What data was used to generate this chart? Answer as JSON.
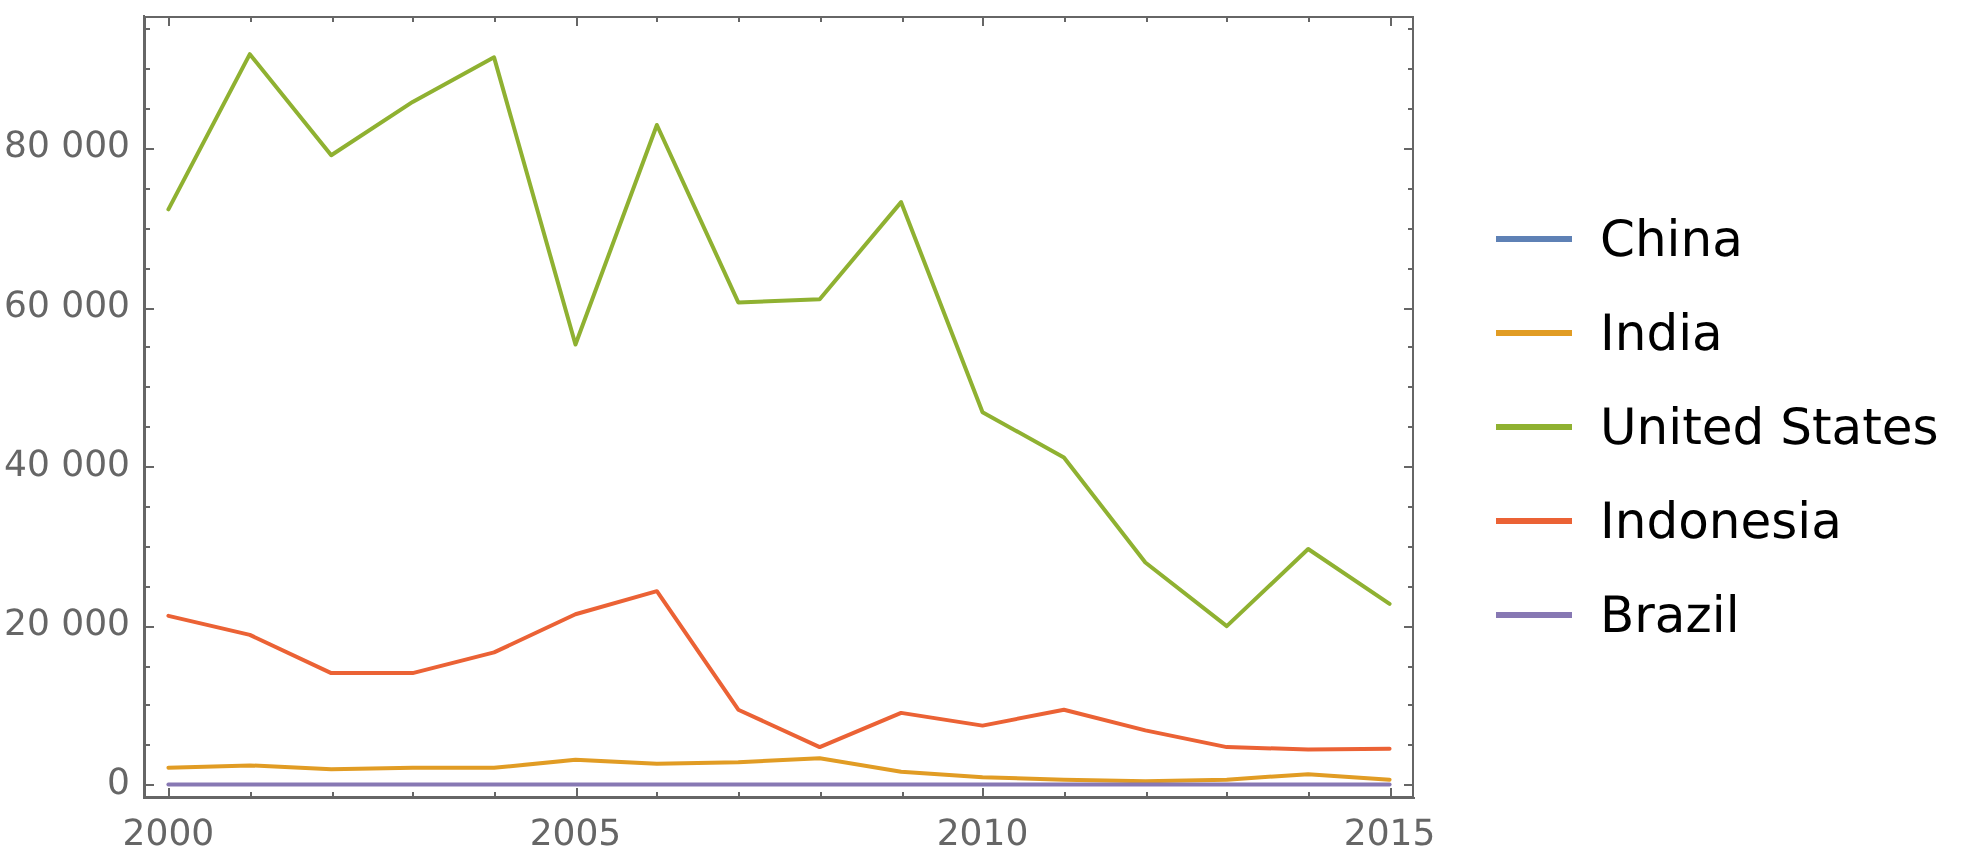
{
  "chart_data": {
    "type": "line",
    "x": [
      2000,
      2001,
      2002,
      2003,
      2004,
      2005,
      2006,
      2007,
      2008,
      2009,
      2010,
      2011,
      2012,
      2013,
      2014,
      2015
    ],
    "series": [
      {
        "name": "China",
        "color": "#5e81b5",
        "values": [
          null,
          null,
          null,
          null,
          null,
          null,
          null,
          null,
          null,
          null,
          null,
          null,
          null,
          null,
          null,
          null
        ]
      },
      {
        "name": "India",
        "color": "#e19c24",
        "values": [
          2100,
          2400,
          1900,
          2100,
          2100,
          3100,
          2600,
          2800,
          3300,
          1600,
          900,
          600,
          400,
          600,
          1300,
          600
        ]
      },
      {
        "name": "United States",
        "color": "#8fb131",
        "values": [
          72300,
          91800,
          79100,
          85800,
          91400,
          55300,
          82900,
          60600,
          61000,
          73200,
          46800,
          41100,
          27900,
          19900,
          29600,
          22700
        ]
      },
      {
        "name": "Indonesia",
        "color": "#eb6235",
        "values": [
          21200,
          18800,
          14000,
          14000,
          16600,
          21400,
          24300,
          9400,
          4700,
          9000,
          7400,
          9400,
          6800,
          4700,
          4400,
          4500
        ]
      },
      {
        "name": "Brazil",
        "color": "#8778b3",
        "values": [
          0,
          0,
          0,
          0,
          0,
          0,
          0,
          0,
          0,
          0,
          0,
          0,
          0,
          0,
          0,
          0
        ]
      }
    ],
    "xlim": [
      1999.7,
      2015.3
    ],
    "ylim": [
      -1700,
      96600
    ],
    "xticks": [
      2000,
      {
        "value": 2001,
        "label": null
      },
      {
        "value": 2002,
        "label": null
      },
      {
        "value": 2003,
        "label": null
      },
      {
        "value": 2004,
        "label": null
      },
      2005,
      {
        "value": 2006,
        "label": null
      },
      {
        "value": 2007,
        "label": null
      },
      {
        "value": 2008,
        "label": null
      },
      {
        "value": 2009,
        "label": null
      },
      2010,
      {
        "value": 2011,
        "label": null
      },
      {
        "value": 2012,
        "label": null
      },
      {
        "value": 2013,
        "label": null
      },
      {
        "value": 2014,
        "label": null
      },
      2015
    ],
    "yticks": [
      0,
      {
        "value": 5000,
        "label": null
      },
      {
        "value": 10000,
        "label": null
      },
      {
        "value": 15000,
        "label": null
      },
      {
        "value": 20000,
        "label": "20 000"
      },
      {
        "value": 25000,
        "label": null
      },
      {
        "value": 30000,
        "label": null
      },
      {
        "value": 35000,
        "label": null
      },
      {
        "value": 40000,
        "label": "40 000"
      },
      {
        "value": 45000,
        "label": null
      },
      {
        "value": 50000,
        "label": null
      },
      {
        "value": 55000,
        "label": null
      },
      {
        "value": 60000,
        "label": "60 000"
      },
      {
        "value": 65000,
        "label": null
      },
      {
        "value": 70000,
        "label": null
      },
      {
        "value": 75000,
        "label": null
      },
      {
        "value": 80000,
        "label": "80 000"
      },
      {
        "value": 85000,
        "label": null
      },
      {
        "value": 90000,
        "label": null
      },
      {
        "value": 95000,
        "label": null
      }
    ],
    "legend": "right",
    "line_style": "solid"
  }
}
